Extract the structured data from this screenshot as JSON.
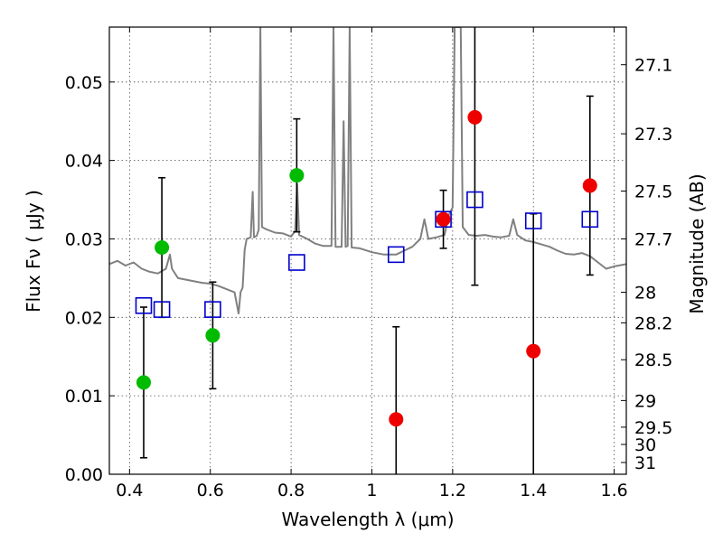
{
  "chart_data": {
    "type": "scatter",
    "title": "",
    "xlabel": "Wavelength  λ (μm)",
    "ylabel": "Flux  Fν  ( μJy )",
    "ylabel_right": "Magnitude (AB)",
    "xlim": [
      0.35,
      1.63
    ],
    "ylim": [
      0.0,
      0.057
    ],
    "grid": true,
    "x_ticks": [
      {
        "value": 0.4,
        "label": "0.4"
      },
      {
        "value": 0.6,
        "label": "0.6"
      },
      {
        "value": 0.8,
        "label": "0.8"
      },
      {
        "value": 1.0,
        "label": "1"
      },
      {
        "value": 1.2,
        "label": "1.2"
      },
      {
        "value": 1.4,
        "label": "1.4"
      },
      {
        "value": 1.6,
        "label": "1.6"
      }
    ],
    "y_ticks": [
      {
        "value": 0.0,
        "label": "0.00"
      },
      {
        "value": 0.01,
        "label": "0.01"
      },
      {
        "value": 0.02,
        "label": "0.02"
      },
      {
        "value": 0.03,
        "label": "0.03"
      },
      {
        "value": 0.04,
        "label": "0.04"
      },
      {
        "value": 0.05,
        "label": "0.05"
      }
    ],
    "right_ticks": [
      {
        "label": "27.1",
        "flux": 0.0522
      },
      {
        "label": "27.3",
        "flux": 0.0434
      },
      {
        "label": "27.5",
        "flux": 0.0361
      },
      {
        "label": "27.7",
        "flux": 0.03
      },
      {
        "label": "28",
        "flux": 0.0232
      },
      {
        "label": "28.2",
        "flux": 0.0193
      },
      {
        "label": "28.5",
        "flux": 0.0146
      },
      {
        "label": "29",
        "flux": 0.0094
      },
      {
        "label": "29.5",
        "flux": 0.006
      },
      {
        "label": "30",
        "flux": 0.0038
      },
      {
        "label": "31",
        "flux": 0.0015
      }
    ],
    "series": [
      {
        "name": "model-spectrum",
        "kind": "line",
        "color": "#808080",
        "points": [
          [
            0.35,
            0.0268
          ],
          [
            0.37,
            0.0272
          ],
          [
            0.39,
            0.0266
          ],
          [
            0.41,
            0.027
          ],
          [
            0.43,
            0.0262
          ],
          [
            0.45,
            0.0258
          ],
          [
            0.47,
            0.0256
          ],
          [
            0.49,
            0.0262
          ],
          [
            0.5,
            0.028
          ],
          [
            0.505,
            0.0262
          ],
          [
            0.52,
            0.025
          ],
          [
            0.54,
            0.0248
          ],
          [
            0.56,
            0.0246
          ],
          [
            0.58,
            0.0244
          ],
          [
            0.6,
            0.0243
          ],
          [
            0.62,
            0.024
          ],
          [
            0.64,
            0.0236
          ],
          [
            0.66,
            0.0232
          ],
          [
            0.67,
            0.0205
          ],
          [
            0.675,
            0.0232
          ],
          [
            0.68,
            0.0238
          ],
          [
            0.685,
            0.0286
          ],
          [
            0.69,
            0.03
          ],
          [
            0.7,
            0.0302
          ],
          [
            0.705,
            0.036
          ],
          [
            0.708,
            0.0302
          ],
          [
            0.715,
            0.0304
          ],
          [
            0.72,
            0.0312
          ],
          [
            0.724,
            0.057
          ],
          [
            0.728,
            0.0315
          ],
          [
            0.74,
            0.0312
          ],
          [
            0.76,
            0.0308
          ],
          [
            0.78,
            0.0307
          ],
          [
            0.8,
            0.0303
          ],
          [
            0.81,
            0.031
          ],
          [
            0.815,
            0.037
          ],
          [
            0.82,
            0.0305
          ],
          [
            0.84,
            0.03
          ],
          [
            0.86,
            0.0294
          ],
          [
            0.88,
            0.0291
          ],
          [
            0.9,
            0.0291
          ],
          [
            0.905,
            0.057
          ],
          [
            0.91,
            0.029
          ],
          [
            0.925,
            0.029
          ],
          [
            0.93,
            0.045
          ],
          [
            0.935,
            0.029
          ],
          [
            0.94,
            0.0291
          ],
          [
            0.945,
            0.057
          ],
          [
            0.95,
            0.0289
          ],
          [
            0.97,
            0.0288
          ],
          [
            1.0,
            0.0283
          ],
          [
            1.03,
            0.028
          ],
          [
            1.06,
            0.028
          ],
          [
            1.08,
            0.0285
          ],
          [
            1.1,
            0.029
          ],
          [
            1.12,
            0.03
          ],
          [
            1.13,
            0.0325
          ],
          [
            1.14,
            0.03
          ],
          [
            1.16,
            0.0302
          ],
          [
            1.18,
            0.0305
          ],
          [
            1.19,
            0.033
          ],
          [
            1.2,
            0.034
          ],
          [
            1.205,
            0.057
          ],
          [
            1.22,
            0.057
          ],
          [
            1.225,
            0.0315
          ],
          [
            1.24,
            0.0305
          ],
          [
            1.26,
            0.0304
          ],
          [
            1.28,
            0.0305
          ],
          [
            1.3,
            0.0303
          ],
          [
            1.32,
            0.0302
          ],
          [
            1.34,
            0.0304
          ],
          [
            1.35,
            0.0325
          ],
          [
            1.36,
            0.0305
          ],
          [
            1.38,
            0.0298
          ],
          [
            1.4,
            0.0296
          ],
          [
            1.42,
            0.0293
          ],
          [
            1.44,
            0.029
          ],
          [
            1.46,
            0.0285
          ],
          [
            1.48,
            0.0281
          ],
          [
            1.5,
            0.028
          ],
          [
            1.52,
            0.0282
          ],
          [
            1.54,
            0.0278
          ],
          [
            1.56,
            0.027
          ],
          [
            1.58,
            0.0262
          ],
          [
            1.6,
            0.0265
          ],
          [
            1.63,
            0.0268
          ]
        ]
      },
      {
        "name": "model-photometry",
        "kind": "open-square",
        "color": "#0000cc",
        "points": [
          [
            0.435,
            0.0215
          ],
          [
            0.48,
            0.021
          ],
          [
            0.606,
            0.021
          ],
          [
            0.814,
            0.027
          ],
          [
            1.06,
            0.028
          ],
          [
            1.177,
            0.0325
          ],
          [
            1.255,
            0.035
          ],
          [
            1.4,
            0.0323
          ],
          [
            1.54,
            0.0325
          ]
        ]
      },
      {
        "name": "observed-green",
        "kind": "filled-circle",
        "color": "#00bb00",
        "points": [
          {
            "x": 0.435,
            "y": 0.0117,
            "err": 0.0096
          },
          {
            "x": 0.48,
            "y": 0.0289,
            "err": 0.0089
          },
          {
            "x": 0.606,
            "y": 0.0177,
            "err": 0.0068
          },
          {
            "x": 0.814,
            "y": 0.0381,
            "err": 0.0072
          }
        ]
      },
      {
        "name": "observed-red",
        "kind": "filled-circle",
        "color": "#ee0000",
        "points": [
          {
            "x": 1.06,
            "y": 0.007,
            "err": 0.0118
          },
          {
            "x": 1.177,
            "y": 0.0325,
            "err": 0.0037
          },
          {
            "x": 1.255,
            "y": 0.0455,
            "err": 0.0214
          },
          {
            "x": 1.4,
            "y": 0.0157,
            "err": 0.0175
          },
          {
            "x": 1.54,
            "y": 0.0368,
            "err": 0.0114
          }
        ]
      }
    ]
  }
}
